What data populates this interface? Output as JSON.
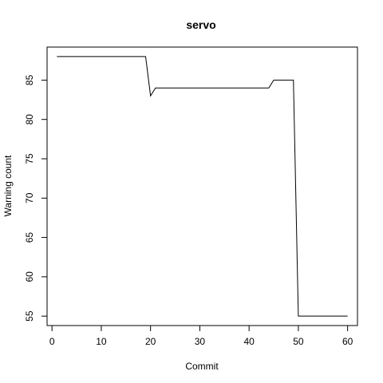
{
  "chart_data": {
    "type": "line",
    "title": "servo",
    "xlabel": "Commit",
    "ylabel": "Warning count",
    "xlim": [
      -1,
      62
    ],
    "ylim": [
      53.8,
      89.2
    ],
    "xticks": [
      0,
      10,
      20,
      30,
      40,
      50,
      60
    ],
    "yticks": [
      55,
      60,
      65,
      70,
      75,
      80,
      85
    ],
    "grid": false,
    "series": [
      {
        "color": "#000000",
        "x": [
          1,
          19,
          20,
          21,
          44,
          45,
          49,
          50,
          60
        ],
        "y": [
          88,
          88,
          83,
          84,
          84,
          85,
          85,
          55,
          55
        ]
      }
    ]
  }
}
